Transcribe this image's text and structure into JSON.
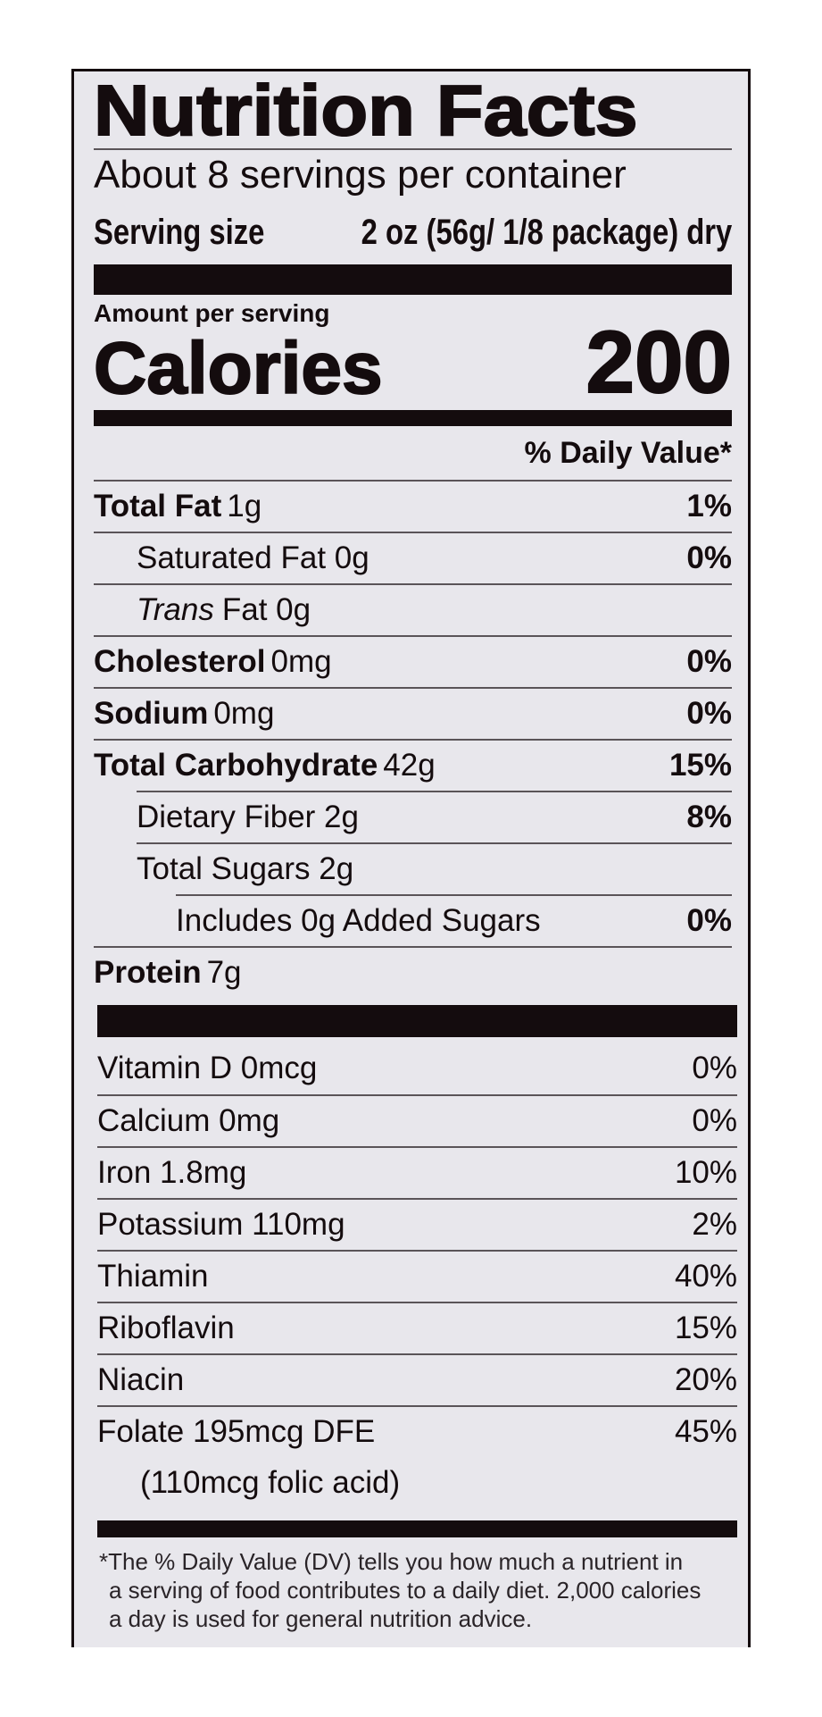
{
  "label": {
    "title": "Nutrition Facts",
    "servings_per_container": "About 8 servings per container",
    "serving_size_label": "Serving size",
    "serving_size_value": "2 oz (56g/ 1/8 package) dry",
    "amount_per_serving": "Amount per serving",
    "calories_label": "Calories",
    "calories_value": "200",
    "daily_value_header": "% Daily Value*",
    "nutrients": [
      {
        "name": "Total Fat",
        "amount": "1g",
        "dv": "1%"
      },
      {
        "name": "Saturated Fat 0g",
        "dv": "0%"
      },
      {
        "name_italic": "Trans",
        "name": "Fat 0g"
      },
      {
        "name": "Cholesterol",
        "amount": "0mg",
        "dv": "0%"
      },
      {
        "name": "Sodium",
        "amount": "0mg",
        "dv": "0%"
      },
      {
        "name": "Total Carbohydrate",
        "amount": "42g",
        "dv": "15%"
      },
      {
        "name": "Dietary Fiber 2g",
        "dv": "8%"
      },
      {
        "name": "Total Sugars 2g"
      },
      {
        "name": "Includes 0g Added Sugars",
        "dv": "0%"
      },
      {
        "name": "Protein",
        "amount": "7g"
      }
    ],
    "vitamins": [
      {
        "name": "Vitamin D 0mcg",
        "dv": "0%"
      },
      {
        "name": "Calcium 0mg",
        "dv": "0%"
      },
      {
        "name": "Iron 1.8mg",
        "dv": "10%"
      },
      {
        "name": "Potassium 110mg",
        "dv": "2%"
      },
      {
        "name": "Thiamin",
        "dv": "40%"
      },
      {
        "name": "Riboflavin",
        "dv": "15%"
      },
      {
        "name": "Niacin",
        "dv": "20%"
      },
      {
        "name": "Folate 195mcg DFE",
        "dv": "45%"
      },
      {
        "name": "(110mcg folic acid)"
      }
    ],
    "footnote": [
      "*The % Daily Value (DV) tells you how much a nutrient in",
      "a serving of food contributes to a daily diet. 2,000 calories",
      "a day is used for general nutrition advice."
    ]
  }
}
